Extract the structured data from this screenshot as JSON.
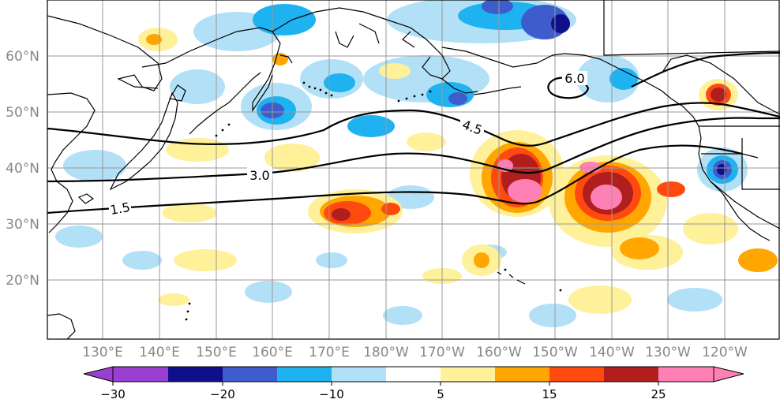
{
  "map": {
    "lat_labels": [
      "60°N",
      "50°N",
      "40°N",
      "30°N",
      "20°N"
    ],
    "lon_labels": [
      "130°E",
      "140°E",
      "150°E",
      "160°E",
      "170°E",
      "180°W",
      "170°W",
      "160°W",
      "150°W",
      "140°W",
      "130°W",
      "120°W"
    ],
    "contour_labels": [
      "6.0",
      "4.5",
      "3.0",
      "1.5"
    ]
  },
  "colorbar": {
    "tick_labels": [
      "−30",
      "−20",
      "−10",
      "5",
      "15",
      "25"
    ],
    "colors": [
      "#9a3fd1",
      "#0f0f8c",
      "#3f5ccc",
      "#1eb2f0",
      "#b2e0f7",
      "#ffffff",
      "#fff09a",
      "#ffa600",
      "#ff4a0f",
      "#b01e1e",
      "#ff80b4"
    ]
  }
}
